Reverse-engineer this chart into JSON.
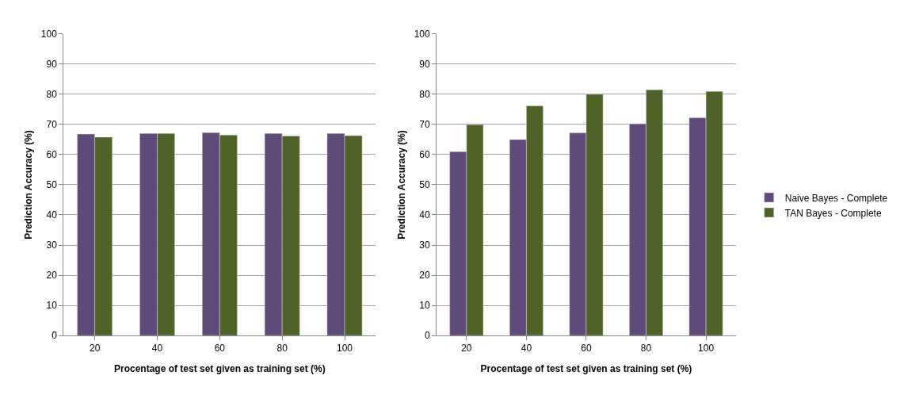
{
  "chart_data": [
    {
      "type": "bar",
      "xlabel": "Procentage of test set given as training set (%)",
      "ylabel": "Prediction Accuracy (%)",
      "categories": [
        "20",
        "40",
        "60",
        "80",
        "100"
      ],
      "series": [
        {
          "color": "#604a7b",
          "values": [
            66.8,
            67,
            67.3,
            67,
            67
          ]
        },
        {
          "color": "#4f6228",
          "values": [
            65.8,
            67,
            66.5,
            66.2,
            66.3
          ]
        }
      ],
      "ylim": [
        0,
        100
      ],
      "yticks": [
        0,
        10,
        20,
        30,
        40,
        50,
        60,
        70,
        80,
        90,
        100
      ],
      "grid": "y"
    },
    {
      "type": "bar",
      "xlabel": "Procentage of test set given as training set (%)",
      "ylabel": "Prediction Accuracy (%)",
      "categories": [
        "20",
        "40",
        "60",
        "80",
        "100"
      ],
      "series": [
        {
          "name": "Naive Bayes - Complete",
          "color": "#604a7b",
          "values": [
            61,
            65,
            67.2,
            70.2,
            72.2
          ]
        },
        {
          "name": "TAN Bayes - Complete",
          "color": "#4f6228",
          "values": [
            69.9,
            76.2,
            80,
            81.5,
            81
          ]
        }
      ],
      "ylim": [
        0,
        100
      ],
      "yticks": [
        0,
        10,
        20,
        30,
        40,
        50,
        60,
        70,
        80,
        90,
        100
      ],
      "grid": "y",
      "legend": "right"
    }
  ]
}
